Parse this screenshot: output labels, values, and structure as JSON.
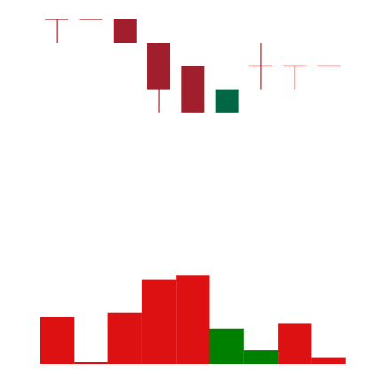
{
  "chart_data": {
    "type": "candlestick",
    "title": "",
    "xlabel": "",
    "ylabel": "",
    "colors": {
      "down_body": "#a11f2c",
      "up_body": "#006644",
      "wick": "#b22222",
      "volume_down": "#dd1111",
      "volume_up": "#008000"
    },
    "price_range": [
      0,
      10
    ],
    "volume_range": [
      0,
      10
    ],
    "candles": [
      {
        "open": 10.0,
        "high": 10.0,
        "low": 9.0,
        "close": 10.0,
        "direction": "down"
      },
      {
        "open": 10.0,
        "high": 10.0,
        "low": 10.0,
        "close": 10.0,
        "direction": "down"
      },
      {
        "open": 10.0,
        "high": 10.0,
        "low": 9.0,
        "close": 9.0,
        "direction": "down"
      },
      {
        "open": 9.0,
        "high": 9.0,
        "low": 6.0,
        "close": 7.0,
        "direction": "down"
      },
      {
        "open": 8.0,
        "high": 8.0,
        "low": 6.0,
        "close": 6.0,
        "direction": "down"
      },
      {
        "open": 6.0,
        "high": 7.0,
        "low": 6.0,
        "close": 7.0,
        "direction": "up"
      },
      {
        "open": 8.0,
        "high": 9.0,
        "low": 7.0,
        "close": 8.0,
        "direction": "down"
      },
      {
        "open": 8.0,
        "high": 8.0,
        "low": 7.0,
        "close": 8.0,
        "direction": "down"
      },
      {
        "open": 8.0,
        "high": 8.0,
        "low": 8.0,
        "close": 8.0,
        "direction": "down"
      }
    ],
    "volume": [
      {
        "value": 5.0,
        "direction": "down"
      },
      {
        "value": 0.2,
        "direction": "down"
      },
      {
        "value": 5.5,
        "direction": "down"
      },
      {
        "value": 9.0,
        "direction": "down"
      },
      {
        "value": 9.5,
        "direction": "down"
      },
      {
        "value": 3.8,
        "direction": "up"
      },
      {
        "value": 1.5,
        "direction": "up"
      },
      {
        "value": 4.3,
        "direction": "down"
      },
      {
        "value": 0.7,
        "direction": "down"
      }
    ]
  }
}
